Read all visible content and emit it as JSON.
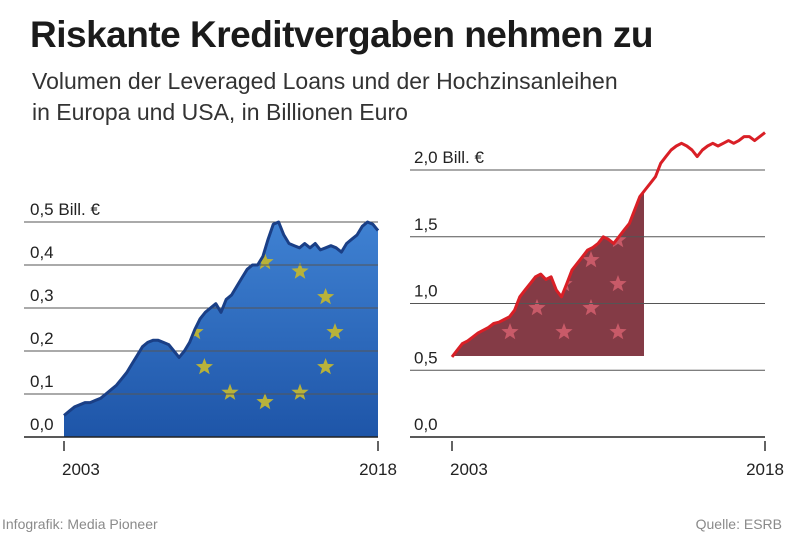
{
  "title": "Riskante Kreditvergaben nehmen zu",
  "subtitle_lines": [
    "Volumen der Leveraged Loans und der Hochzinsanleihen",
    "in Europa und USA, in Billionen Euro"
  ],
  "footer": {
    "credit": "Infografik: Media Pioneer",
    "source": "Quelle: ESRB"
  },
  "colors": {
    "europe_fill": "#2f6fc4",
    "europe_line": "#1a3f86",
    "star_gold": "#b8b23a",
    "usa_stripe_dark": "#c8282d",
    "usa_stripe_light": "#e06a66",
    "usa_line": "#d91f26",
    "usa_canton": "#7a2a36",
    "grid": "#555555"
  },
  "chart_data": [
    {
      "type": "area",
      "region": "Europa",
      "x": [
        2003,
        2003.25,
        2003.5,
        2003.75,
        2004,
        2004.25,
        2004.5,
        2004.75,
        2005,
        2005.25,
        2005.5,
        2005.75,
        2006,
        2006.25,
        2006.5,
        2006.75,
        2007,
        2007.25,
        2007.5,
        2007.75,
        2008,
        2008.25,
        2008.5,
        2008.75,
        2009,
        2009.25,
        2009.5,
        2009.75,
        2010,
        2010.25,
        2010.5,
        2010.75,
        2011,
        2011.25,
        2011.5,
        2011.75,
        2012,
        2012.25,
        2012.5,
        2012.75,
        2013,
        2013.25,
        2013.5,
        2013.75,
        2014,
        2014.25,
        2014.5,
        2014.75,
        2015,
        2015.25,
        2015.5,
        2015.75,
        2016,
        2016.25,
        2016.5,
        2016.75,
        2017,
        2017.25,
        2017.5,
        2017.75,
        2018
      ],
      "values": [
        0.05,
        0.06,
        0.07,
        0.075,
        0.08,
        0.08,
        0.085,
        0.09,
        0.1,
        0.11,
        0.12,
        0.135,
        0.15,
        0.17,
        0.19,
        0.21,
        0.22,
        0.225,
        0.225,
        0.22,
        0.215,
        0.2,
        0.185,
        0.2,
        0.22,
        0.25,
        0.275,
        0.29,
        0.3,
        0.31,
        0.29,
        0.32,
        0.33,
        0.35,
        0.37,
        0.39,
        0.4,
        0.4,
        0.42,
        0.46,
        0.495,
        0.5,
        0.47,
        0.45,
        0.445,
        0.44,
        0.45,
        0.44,
        0.45,
        0.435,
        0.44,
        0.445,
        0.44,
        0.43,
        0.45,
        0.46,
        0.47,
        0.49,
        0.5,
        0.495,
        0.48
      ],
      "ylim": [
        0,
        0.5
      ],
      "y_ticks": [
        0,
        0.1,
        0.2,
        0.3,
        0.4,
        0.5
      ],
      "y_tick_labels": [
        "0,0",
        "0,1",
        "0,2",
        "0,3",
        "0,4",
        "0,5 Bill. €"
      ],
      "x_tick_labels": [
        "2003",
        "2018"
      ],
      "grid": true
    },
    {
      "type": "area",
      "region": "USA",
      "x": [
        2003,
        2003.25,
        2003.5,
        2003.75,
        2004,
        2004.25,
        2004.5,
        2004.75,
        2005,
        2005.25,
        2005.5,
        2005.75,
        2006,
        2006.25,
        2006.5,
        2006.75,
        2007,
        2007.25,
        2007.5,
        2007.75,
        2008,
        2008.25,
        2008.5,
        2008.75,
        2009,
        2009.25,
        2009.5,
        2009.75,
        2010,
        2010.25,
        2010.5,
        2010.75,
        2011,
        2011.25,
        2011.5,
        2011.75,
        2012,
        2012.25,
        2012.5,
        2012.75,
        2013,
        2013.25,
        2013.5,
        2013.75,
        2014,
        2014.25,
        2014.5,
        2014.75,
        2015,
        2015.25,
        2015.5,
        2015.75,
        2016,
        2016.25,
        2016.5,
        2016.75,
        2017,
        2017.25,
        2017.5,
        2017.75,
        2018
      ],
      "values": [
        0.6,
        0.65,
        0.7,
        0.72,
        0.75,
        0.78,
        0.8,
        0.82,
        0.85,
        0.86,
        0.88,
        0.9,
        0.95,
        1.05,
        1.1,
        1.15,
        1.2,
        1.22,
        1.18,
        1.2,
        1.1,
        1.05,
        1.15,
        1.25,
        1.3,
        1.35,
        1.4,
        1.42,
        1.45,
        1.5,
        1.48,
        1.45,
        1.5,
        1.55,
        1.6,
        1.7,
        1.8,
        1.85,
        1.9,
        1.95,
        2.05,
        2.1,
        2.15,
        2.18,
        2.2,
        2.18,
        2.15,
        2.1,
        2.15,
        2.18,
        2.2,
        2.18,
        2.2,
        2.22,
        2.2,
        2.22,
        2.25,
        2.25,
        2.22,
        2.25,
        2.28
      ],
      "ylim": [
        0,
        2.0
      ],
      "y_ticks": [
        0,
        0.5,
        1.0,
        1.5,
        2.0
      ],
      "y_tick_labels": [
        "0,0",
        "0,5",
        "1,0",
        "1,5",
        "2,0 Bill. €"
      ],
      "x_tick_labels": [
        "2003",
        "2018"
      ],
      "grid": true
    }
  ]
}
